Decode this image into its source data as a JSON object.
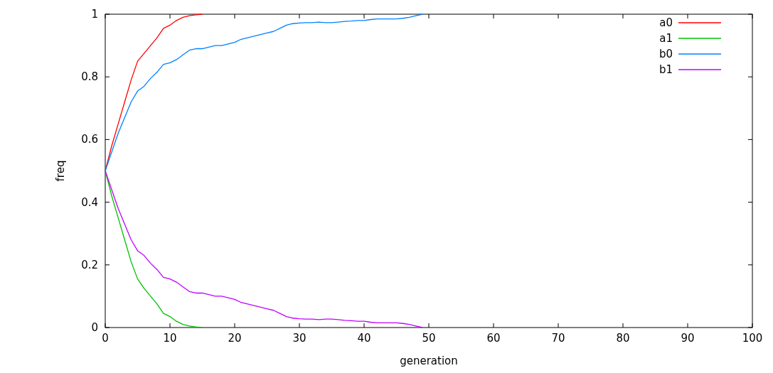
{
  "chart_data": {
    "type": "line",
    "xlabel": "generation",
    "ylabel": "freq",
    "xlim": [
      0,
      100
    ],
    "ylim": [
      0,
      1
    ],
    "xticks": [
      0,
      10,
      20,
      30,
      40,
      50,
      60,
      70,
      80,
      90,
      100
    ],
    "yticks": [
      0,
      0.2,
      0.4,
      0.6,
      0.8,
      1
    ],
    "grid": false,
    "legend": "top right",
    "marker": "none",
    "line_style": "solid",
    "series": [
      {
        "name": "a0",
        "color": "#ff0000",
        "x": [
          0,
          1,
          2,
          3,
          4,
          5,
          6,
          7,
          8,
          9,
          10,
          11,
          12,
          13,
          14,
          15
        ],
        "values": [
          0.5,
          0.58,
          0.65,
          0.72,
          0.79,
          0.85,
          0.875,
          0.9,
          0.925,
          0.955,
          0.965,
          0.98,
          0.99,
          0.995,
          0.998,
          1
        ]
      },
      {
        "name": "a1",
        "color": "#00c000",
        "x": [
          0,
          1,
          2,
          3,
          4,
          5,
          6,
          7,
          8,
          9,
          10,
          11,
          12,
          13,
          14,
          15
        ],
        "values": [
          0.5,
          0.42,
          0.35,
          0.28,
          0.21,
          0.155,
          0.125,
          0.1,
          0.075,
          0.045,
          0.035,
          0.02,
          0.01,
          0.005,
          0.002,
          0
        ]
      },
      {
        "name": "b0",
        "color": "#0080ff",
        "x": [
          0,
          1,
          2,
          3,
          4,
          5,
          6,
          7,
          8,
          9,
          10,
          11,
          12,
          13,
          14,
          15,
          16,
          17,
          18,
          19,
          20,
          21,
          22,
          23,
          24,
          25,
          26,
          27,
          28,
          29,
          30,
          31,
          32,
          33,
          34,
          35,
          36,
          37,
          38,
          39,
          40,
          41,
          42,
          43,
          44,
          45,
          46,
          47,
          48,
          49
        ],
        "values": [
          0.5,
          0.56,
          0.62,
          0.67,
          0.72,
          0.755,
          0.77,
          0.795,
          0.815,
          0.84,
          0.845,
          0.855,
          0.87,
          0.885,
          0.89,
          0.89,
          0.895,
          0.9,
          0.9,
          0.905,
          0.91,
          0.92,
          0.925,
          0.93,
          0.935,
          0.94,
          0.945,
          0.955,
          0.965,
          0.97,
          0.972,
          0.973,
          0.973,
          0.975,
          0.973,
          0.973,
          0.975,
          0.977,
          0.978,
          0.98,
          0.98,
          0.983,
          0.985,
          0.985,
          0.985,
          0.985,
          0.987,
          0.99,
          0.995,
          1
        ]
      },
      {
        "name": "b1",
        "color": "#c000ff",
        "x": [
          0,
          1,
          2,
          3,
          4,
          5,
          6,
          7,
          8,
          9,
          10,
          11,
          12,
          13,
          14,
          15,
          16,
          17,
          18,
          19,
          20,
          21,
          22,
          23,
          24,
          25,
          26,
          27,
          28,
          29,
          30,
          31,
          32,
          33,
          34,
          35,
          36,
          37,
          38,
          39,
          40,
          41,
          42,
          43,
          44,
          45,
          46,
          47,
          48,
          49
        ],
        "values": [
          0.5,
          0.44,
          0.38,
          0.33,
          0.28,
          0.245,
          0.23,
          0.205,
          0.185,
          0.16,
          0.155,
          0.145,
          0.13,
          0.115,
          0.11,
          0.11,
          0.105,
          0.1,
          0.1,
          0.095,
          0.09,
          0.08,
          0.075,
          0.07,
          0.065,
          0.06,
          0.055,
          0.045,
          0.035,
          0.03,
          0.028,
          0.027,
          0.027,
          0.025,
          0.027,
          0.027,
          0.025,
          0.023,
          0.022,
          0.02,
          0.02,
          0.017,
          0.015,
          0.015,
          0.015,
          0.015,
          0.013,
          0.01,
          0.005,
          0
        ]
      }
    ]
  }
}
